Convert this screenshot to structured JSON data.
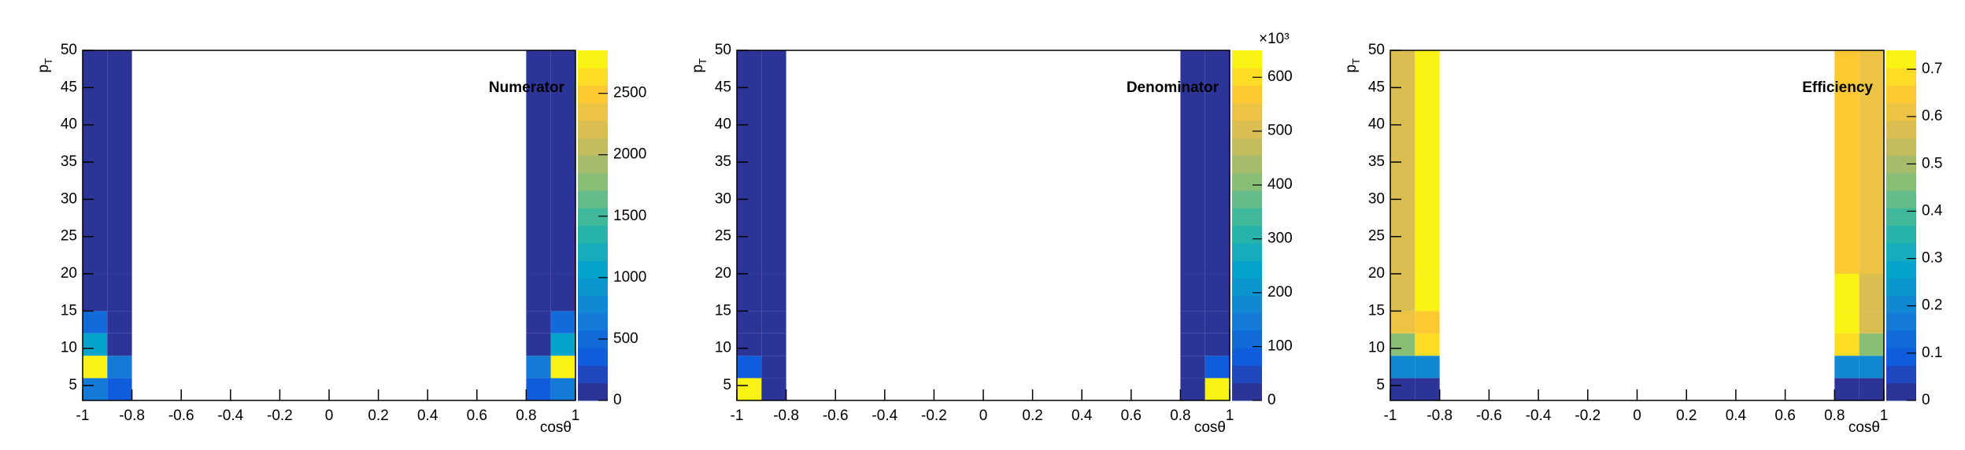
{
  "chart_data": [
    {
      "type": "heatmap",
      "annotation": "Numerator",
      "x_label": "cosθ",
      "y_label": {
        "base": "p",
        "sub": "T"
      },
      "x_edges": [
        -1,
        -0.9,
        -0.8,
        0.8,
        0.9,
        1
      ],
      "y_edges": [
        3,
        6,
        9,
        12,
        15,
        20,
        50
      ],
      "values": [
        [
          700,
          300,
          null,
          300,
          700
        ],
        [
          2800,
          600,
          null,
          600,
          2800
        ],
        [
          1100,
          50,
          null,
          50,
          1100
        ],
        [
          500,
          50,
          null,
          50,
          500
        ],
        [
          100,
          50,
          null,
          50,
          100
        ],
        [
          50,
          50,
          null,
          50,
          50
        ]
      ],
      "xlim": [
        -1,
        1
      ],
      "xticks": [
        -1,
        -0.8,
        -0.6,
        -0.4,
        -0.2,
        0,
        0.2,
        0.4,
        0.6,
        0.8,
        1
      ],
      "ylim": [
        3,
        50
      ],
      "yticks": [
        5,
        10,
        15,
        20,
        25,
        30,
        35,
        40,
        45,
        50
      ],
      "zlim": [
        0,
        2850
      ],
      "zticks": [
        0,
        500,
        1000,
        1500,
        2000,
        2500
      ],
      "colormap": [
        "#352a87",
        "#0f5cdd",
        "#1481d6",
        "#06a4ca",
        "#2eb7a4",
        "#87bf77",
        "#d1bb59",
        "#fec832",
        "#f9fb0e"
      ],
      "color_levels": 20
    },
    {
      "type": "heatmap",
      "annotation": "Denominator",
      "x_label": "cosθ",
      "y_label": {
        "base": "p",
        "sub": "T"
      },
      "z_exponent_label": "×10³",
      "x_edges": [
        -1,
        -0.9,
        -0.8,
        0.8,
        0.9,
        1
      ],
      "y_edges": [
        3,
        6,
        9,
        12,
        15,
        20,
        50
      ],
      "values": [
        [
          640,
          10,
          null,
          10,
          640
        ],
        [
          80,
          10,
          null,
          10,
          80
        ],
        [
          5,
          5,
          null,
          5,
          5
        ],
        [
          5,
          5,
          null,
          5,
          5
        ],
        [
          5,
          5,
          null,
          5,
          5
        ],
        [
          5,
          5,
          null,
          5,
          5
        ]
      ],
      "xlim": [
        -1,
        1
      ],
      "xticks": [
        -1,
        -0.8,
        -0.6,
        -0.4,
        -0.2,
        0,
        0.2,
        0.4,
        0.6,
        0.8,
        1
      ],
      "ylim": [
        3,
        50
      ],
      "yticks": [
        5,
        10,
        15,
        20,
        25,
        30,
        35,
        40,
        45,
        50
      ],
      "zlim": [
        0,
        650
      ],
      "zticks": [
        0,
        100,
        200,
        300,
        400,
        500,
        600
      ],
      "colormap": [
        "#352a87",
        "#0f5cdd",
        "#1481d6",
        "#06a4ca",
        "#2eb7a4",
        "#87bf77",
        "#d1bb59",
        "#fec832",
        "#f9fb0e"
      ],
      "color_levels": 20
    },
    {
      "type": "heatmap",
      "annotation": "Efficiency",
      "x_label": "cosθ",
      "y_label": {
        "base": "p",
        "sub": "T"
      },
      "x_edges": [
        -1,
        -0.9,
        -0.8,
        0.8,
        0.9,
        1
      ],
      "y_edges": [
        3,
        6,
        9,
        12,
        15,
        20,
        50
      ],
      "values": [
        [
          0.03,
          0.03,
          null,
          0.03,
          0.03
        ],
        [
          0.2,
          0.2,
          null,
          0.2,
          0.2
        ],
        [
          0.45,
          0.68,
          null,
          0.7,
          0.48
        ],
        [
          0.62,
          0.64,
          null,
          0.72,
          0.58
        ],
        [
          0.58,
          0.72,
          null,
          0.74,
          0.58
        ],
        [
          0.58,
          0.74,
          null,
          0.66,
          0.6
        ]
      ],
      "xlim": [
        -1,
        1
      ],
      "xticks": [
        -1,
        -0.8,
        -0.6,
        -0.4,
        -0.2,
        0,
        0.2,
        0.4,
        0.6,
        0.8,
        1
      ],
      "ylim": [
        3,
        50
      ],
      "yticks": [
        5,
        10,
        15,
        20,
        25,
        30,
        35,
        40,
        45,
        50
      ],
      "zlim": [
        0,
        0.74
      ],
      "zticks": [
        0,
        0.1,
        0.2,
        0.3,
        0.4,
        0.5,
        0.6,
        0.7
      ],
      "colormap": [
        "#352a87",
        "#0f5cdd",
        "#1481d6",
        "#06a4ca",
        "#2eb7a4",
        "#87bf77",
        "#d1bb59",
        "#fec832",
        "#f9fb0e"
      ],
      "color_levels": 20
    }
  ]
}
